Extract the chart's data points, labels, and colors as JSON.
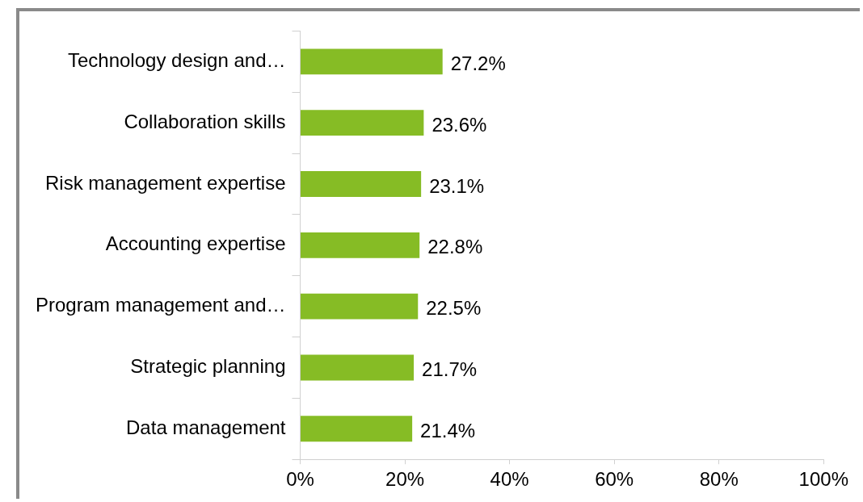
{
  "chart_data": {
    "type": "bar",
    "orientation": "horizontal",
    "categories": [
      "Technology design and…",
      "Collaboration skills",
      "Risk management expertise",
      "Accounting expertise",
      "Program management and…",
      "Strategic planning",
      "Data management"
    ],
    "values": [
      27.2,
      23.6,
      23.1,
      22.8,
      22.5,
      21.7,
      21.4
    ],
    "value_labels": [
      "27.2%",
      "23.6%",
      "23.1%",
      "22.8%",
      "22.5%",
      "21.7%",
      "21.4%"
    ],
    "color": "#86bc25",
    "xlim": [
      0,
      100
    ],
    "xticks": [
      {
        "value": 0,
        "label": "0%"
      },
      {
        "value": 20,
        "label": "20%"
      },
      {
        "value": 40,
        "label": "40%"
      },
      {
        "value": 60,
        "label": "60%"
      },
      {
        "value": 80,
        "label": "80%"
      },
      {
        "value": 100,
        "label": "100%"
      }
    ]
  }
}
